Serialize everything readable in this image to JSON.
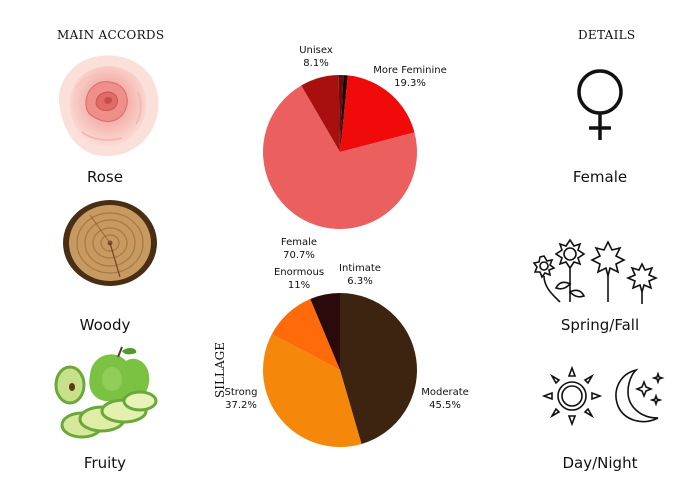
{
  "headings": {
    "main_accords": "MAIN ACCORDS",
    "details": "DETAILS"
  },
  "accords": [
    {
      "label": "Rose",
      "icon": "rose-flower-icon"
    },
    {
      "label": "Woody",
      "icon": "wood-slice-icon"
    },
    {
      "label": "Fruity",
      "icon": "green-apple-icon"
    }
  ],
  "details": [
    {
      "label": "Female",
      "icon": "female-symbol-icon"
    },
    {
      "label": "Spring/Fall",
      "icon": "flowers-leaves-icon"
    },
    {
      "label": "Day/Night",
      "icon": "sun-moon-icon"
    }
  ],
  "chart_data": [
    {
      "type": "pie",
      "title": "",
      "slices": [
        {
          "label": "More Feminine",
          "value": 19.3,
          "display": "19.3%",
          "color": "#f00a0a"
        },
        {
          "label": "Female",
          "value": 70.7,
          "display": "70.7%",
          "color": "#ec5f5f"
        },
        {
          "label": "Unisex",
          "value": 8.1,
          "display": "8.1%",
          "color": "#a80f0f"
        },
        {
          "label": "",
          "value": 1.0,
          "display": "",
          "color": "#6b0a0a"
        },
        {
          "label": "",
          "value": 0.9,
          "display": "",
          "color": "#1a0505"
        }
      ]
    },
    {
      "type": "pie",
      "title": "SILLAGE",
      "slices": [
        {
          "label": "Moderate",
          "value": 45.5,
          "display": "45.5%",
          "color": "#3d2410"
        },
        {
          "label": "Strong",
          "value": 37.2,
          "display": "37.2%",
          "color": "#f5870a"
        },
        {
          "label": "Enormous",
          "value": 11,
          "display": "11%",
          "color": "#ff6a0a"
        },
        {
          "label": "Intimate",
          "value": 6.3,
          "display": "6.3%",
          "color": "#2a0a0a"
        }
      ]
    }
  ]
}
